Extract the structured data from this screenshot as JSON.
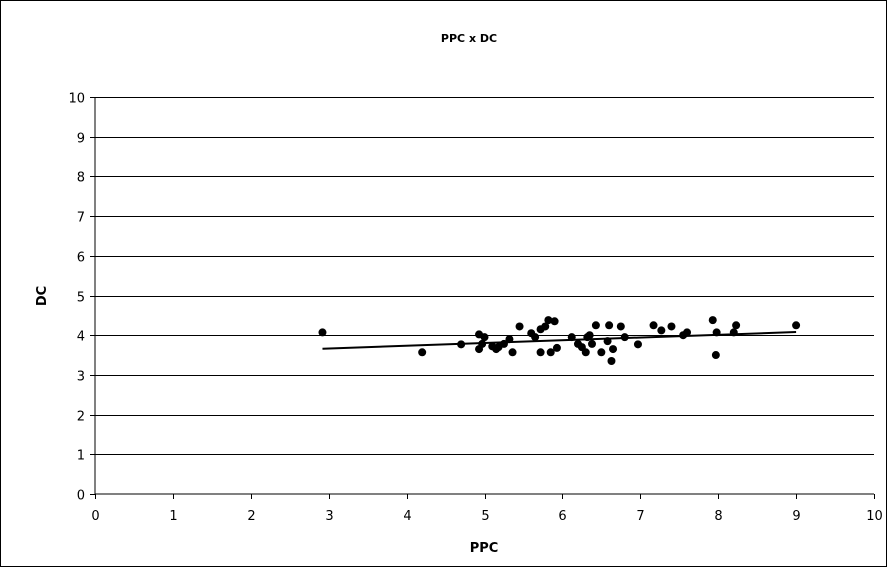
{
  "chart_data": {
    "type": "scatter",
    "title": "PPC x DC",
    "xlabel": "PPC",
    "ylabel": "DC",
    "xlim": [
      0,
      10
    ],
    "ylim": [
      0,
      10
    ],
    "xticks": [
      "0",
      "1",
      "2",
      "3",
      "4",
      "5",
      "6",
      "7",
      "8",
      "9",
      "10"
    ],
    "yticks": [
      "0",
      "1",
      "2",
      "3",
      "4",
      "5",
      "6",
      "7",
      "8",
      "9",
      "10"
    ],
    "grid": "horizontal",
    "legend": "none",
    "series": [
      {
        "marker_color": "#000000",
        "points": [
          [
            2.92,
            4.07
          ],
          [
            4.2,
            3.57
          ],
          [
            4.7,
            3.77
          ],
          [
            4.93,
            3.65
          ],
          [
            4.93,
            4.02
          ],
          [
            4.97,
            3.78
          ],
          [
            5.0,
            3.95
          ],
          [
            5.1,
            3.72
          ],
          [
            5.15,
            3.65
          ],
          [
            5.18,
            3.7
          ],
          [
            5.25,
            3.78
          ],
          [
            5.32,
            3.9
          ],
          [
            5.36,
            3.57
          ],
          [
            5.45,
            4.22
          ],
          [
            5.6,
            4.05
          ],
          [
            5.65,
            3.95
          ],
          [
            5.72,
            3.57
          ],
          [
            5.72,
            4.15
          ],
          [
            5.78,
            4.22
          ],
          [
            5.82,
            4.38
          ],
          [
            5.85,
            3.57
          ],
          [
            5.9,
            4.35
          ],
          [
            5.93,
            3.68
          ],
          [
            6.12,
            3.95
          ],
          [
            6.2,
            3.78
          ],
          [
            6.25,
            3.7
          ],
          [
            6.3,
            3.57
          ],
          [
            6.32,
            3.95
          ],
          [
            6.35,
            4.0
          ],
          [
            6.38,
            3.78
          ],
          [
            6.43,
            4.25
          ],
          [
            6.5,
            3.57
          ],
          [
            6.58,
            3.85
          ],
          [
            6.6,
            4.25
          ],
          [
            6.63,
            3.35
          ],
          [
            6.65,
            3.65
          ],
          [
            6.75,
            4.22
          ],
          [
            6.8,
            3.95
          ],
          [
            6.97,
            3.77
          ],
          [
            7.17,
            4.25
          ],
          [
            7.27,
            4.12
          ],
          [
            7.4,
            4.22
          ],
          [
            7.55,
            4.0
          ],
          [
            7.6,
            4.07
          ],
          [
            7.93,
            4.38
          ],
          [
            7.97,
            3.5
          ],
          [
            7.98,
            4.07
          ],
          [
            8.2,
            4.07
          ],
          [
            8.23,
            4.25
          ],
          [
            9.0,
            4.25
          ]
        ]
      }
    ],
    "trendline": {
      "type": "linear",
      "x": [
        2.92,
        9.0
      ],
      "y": [
        3.66,
        4.08
      ],
      "color": "#000000"
    }
  }
}
